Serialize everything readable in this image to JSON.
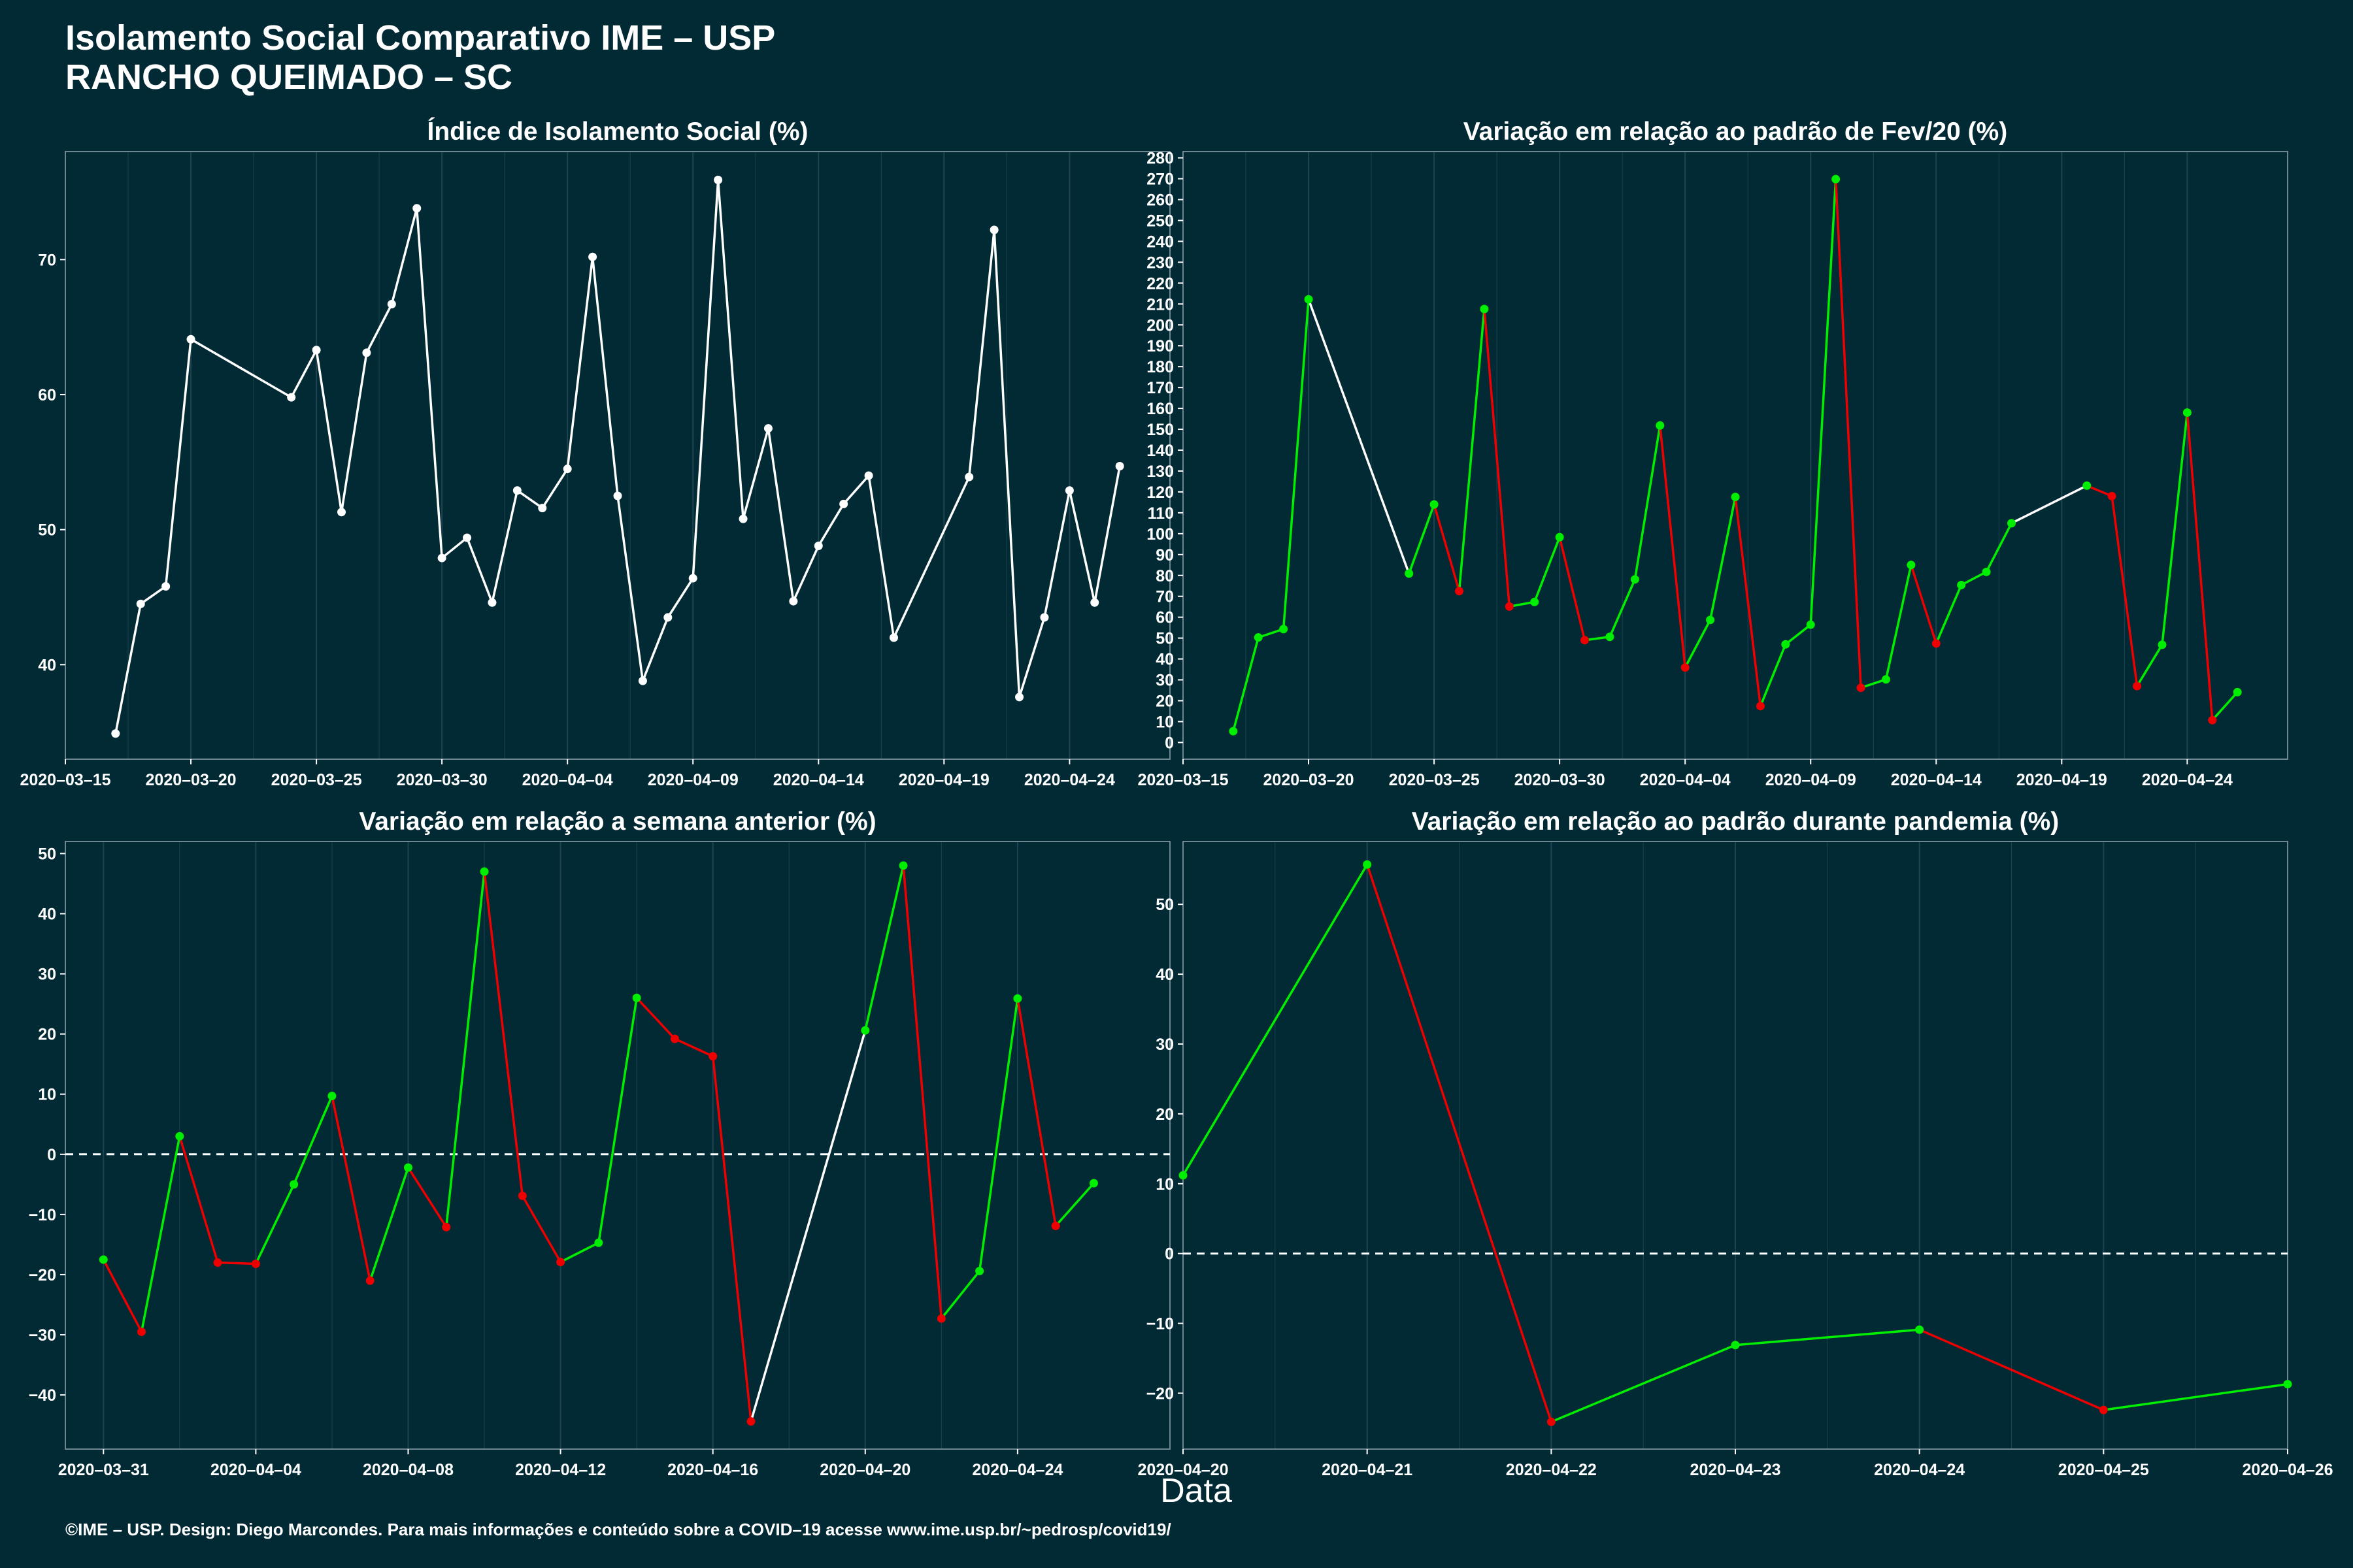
{
  "header": {
    "title_line1": "Isolamento Social Comparativo IME – USP",
    "title_line2": "RANCHO QUEIMADO – SC"
  },
  "xlabel": "Data",
  "caption": "©IME – USP. Design: Diego Marcondes. Para mais informações e conteúdo sobre a COVID–19 acesse www.ime.usp.br/~pedrosp/covid19/",
  "colors": {
    "background": "#022a35",
    "up": "#00ee00",
    "down": "#ee0000",
    "neutral": "#ffffff",
    "grid": "#1d4450"
  },
  "chart_data": [
    {
      "type": "line",
      "title": "Índice de Isolamento Social (%)",
      "xlabel": "Data",
      "ylabel": "",
      "xlim": [
        "2020-03-15",
        "2020-04-28"
      ],
      "ylim": [
        33,
        78
      ],
      "xticks": [
        "2020-03-15",
        "2020-03-20",
        "2020-03-25",
        "2020-03-30",
        "2020-04-04",
        "2020-04-09",
        "2020-04-14",
        "2020-04-19",
        "2020-04-24"
      ],
      "yticks": [
        40,
        50,
        60,
        70
      ],
      "coloring": "neutral",
      "x": [
        "2020-03-17",
        "2020-03-18",
        "2020-03-19",
        "2020-03-20",
        "2020-03-24",
        "2020-03-25",
        "2020-03-26",
        "2020-03-27",
        "2020-03-28",
        "2020-03-29",
        "2020-03-30",
        "2020-03-31",
        "2020-04-01",
        "2020-04-02",
        "2020-04-03",
        "2020-04-04",
        "2020-04-05",
        "2020-04-06",
        "2020-04-07",
        "2020-04-08",
        "2020-04-09",
        "2020-04-10",
        "2020-04-11",
        "2020-04-12",
        "2020-04-13",
        "2020-04-14",
        "2020-04-15",
        "2020-04-16",
        "2020-04-17",
        "2020-04-20",
        "2020-04-21",
        "2020-04-22",
        "2020-04-23",
        "2020-04-24",
        "2020-04-25",
        "2020-04-26"
      ],
      "values": [
        34.9,
        44.5,
        45.8,
        64.1,
        59.8,
        63.3,
        51.3,
        63.1,
        66.7,
        73.8,
        47.9,
        49.4,
        44.6,
        52.9,
        51.6,
        54.5,
        70.2,
        52.5,
        38.8,
        43.5,
        46.4,
        75.9,
        50.8,
        57.5,
        44.7,
        48.8,
        51.9,
        54.0,
        42.0,
        53.9,
        72.2,
        37.6,
        43.5,
        52.9,
        44.6,
        54.7
      ]
    },
    {
      "type": "line",
      "title": "Variação em relação ao padrão de Fev/20 (%)",
      "xlabel": "Data",
      "ylabel": "",
      "xlim": [
        "2020-03-15",
        "2020-04-28"
      ],
      "ylim": [
        -8,
        283
      ],
      "xticks": [
        "2020-03-15",
        "2020-03-20",
        "2020-03-25",
        "2020-03-30",
        "2020-04-04",
        "2020-04-09",
        "2020-04-14",
        "2020-04-19",
        "2020-04-24"
      ],
      "yticks": [
        0,
        10,
        20,
        30,
        40,
        50,
        60,
        70,
        80,
        90,
        100,
        110,
        120,
        130,
        140,
        150,
        160,
        170,
        180,
        190,
        200,
        210,
        220,
        230,
        240,
        250,
        260,
        270,
        280
      ],
      "coloring": "trend",
      "x": [
        "2020-03-17",
        "2020-03-18",
        "2020-03-19",
        "2020-03-20",
        "2020-03-24",
        "2020-03-25",
        "2020-03-26",
        "2020-03-27",
        "2020-03-28",
        "2020-03-29",
        "2020-03-30",
        "2020-03-31",
        "2020-04-01",
        "2020-04-02",
        "2020-04-03",
        "2020-04-04",
        "2020-04-05",
        "2020-04-06",
        "2020-04-07",
        "2020-04-08",
        "2020-04-09",
        "2020-04-10",
        "2020-04-11",
        "2020-04-12",
        "2020-04-13",
        "2020-04-14",
        "2020-04-15",
        "2020-04-16",
        "2020-04-17",
        "2020-04-20",
        "2020-04-21",
        "2020-04-22",
        "2020-04-23",
        "2020-04-24",
        "2020-04-25",
        "2020-04-26"
      ],
      "values": [
        5.4,
        50.3,
        54.3,
        212.2,
        80.9,
        114.0,
        72.5,
        207.6,
        65.1,
        67.3,
        98.3,
        49.0,
        50.6,
        78.1,
        151.8,
        35.9,
        58.7,
        117.6,
        17.4,
        47.0,
        56.4,
        269.8,
        26.2,
        30.2,
        85.0,
        47.4,
        75.4,
        81.7,
        105.0,
        123.0,
        118.0,
        27.0,
        46.8,
        158.0,
        10.7,
        24.1
      ]
    },
    {
      "type": "line",
      "title": "Variação em relação a semana anterior (%)",
      "xlabel": "Data",
      "ylabel": "",
      "xlim": [
        "2020-03-30",
        "2020-04-28"
      ],
      "ylim": [
        -49,
        52
      ],
      "xticks": [
        "2020-03-31",
        "2020-04-04",
        "2020-04-08",
        "2020-04-12",
        "2020-04-16",
        "2020-04-20",
        "2020-04-24"
      ],
      "yticks": [
        -40,
        -30,
        -20,
        -10,
        0,
        10,
        20,
        30,
        40,
        50
      ],
      "reference_line": 0,
      "coloring": "trend",
      "x": [
        "2020-03-31",
        "2020-04-01",
        "2020-04-02",
        "2020-04-03",
        "2020-04-04",
        "2020-04-05",
        "2020-04-06",
        "2020-04-07",
        "2020-04-08",
        "2020-04-09",
        "2020-04-10",
        "2020-04-11",
        "2020-04-12",
        "2020-04-13",
        "2020-04-14",
        "2020-04-15",
        "2020-04-16",
        "2020-04-17",
        "2020-04-20",
        "2020-04-21",
        "2020-04-22",
        "2020-04-23",
        "2020-04-24",
        "2020-04-25",
        "2020-04-26"
      ],
      "values": [
        -17.5,
        -29.5,
        3.0,
        -18.0,
        -18.2,
        -5.0,
        9.7,
        -21.0,
        -2.2,
        -12.1,
        47.0,
        -6.9,
        -17.9,
        -14.7,
        26.0,
        19.2,
        16.3,
        -44.4,
        20.6,
        48.0,
        -27.3,
        -19.4,
        25.9,
        -11.9,
        -4.8
      ]
    },
    {
      "type": "line",
      "title": "Variação em relação ao padrão durante pandemia (%)",
      "xlabel": "Data",
      "ylabel": "",
      "xlim": [
        "2020-04-20",
        "2020-04-26"
      ],
      "ylim": [
        -28,
        59
      ],
      "xticks": [
        "2020-04-20",
        "2020-04-21",
        "2020-04-22",
        "2020-04-23",
        "2020-04-24",
        "2020-04-25",
        "2020-04-26"
      ],
      "yticks": [
        -20,
        -10,
        0,
        10,
        20,
        30,
        40,
        50
      ],
      "reference_line": 0,
      "coloring": "trend",
      "x": [
        "2020-04-20",
        "2020-04-21",
        "2020-04-22",
        "2020-04-23",
        "2020-04-24",
        "2020-04-25",
        "2020-04-26"
      ],
      "values": [
        11.2,
        55.7,
        -24.1,
        -13.1,
        -10.9,
        -22.4,
        -18.7
      ]
    }
  ]
}
